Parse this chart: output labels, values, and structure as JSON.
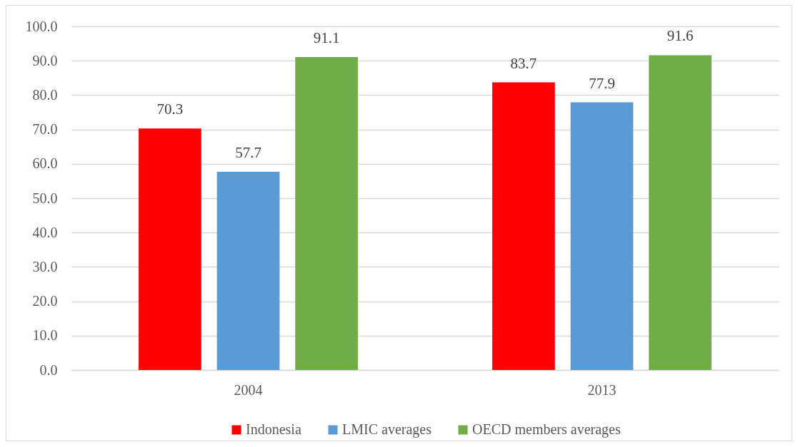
{
  "chart_data": {
    "type": "bar",
    "categories": [
      "2004",
      "2013"
    ],
    "series": [
      {
        "name": "Indonesia",
        "color": "#ff0000",
        "values": [
          70.3,
          83.7
        ]
      },
      {
        "name": "LMIC averages",
        "color": "#5b9bd5",
        "values": [
          57.7,
          77.9
        ]
      },
      {
        "name": "OECD members averages",
        "color": "#70ad47",
        "values": [
          91.1,
          91.6
        ]
      }
    ],
    "ylim": [
      0,
      100
    ],
    "yticks": [
      {
        "value": 0,
        "label": "0.0"
      },
      {
        "value": 10,
        "label": "10.0"
      },
      {
        "value": 20,
        "label": "20.0"
      },
      {
        "value": 30,
        "label": "30.0"
      },
      {
        "value": 40,
        "label": "40.0"
      },
      {
        "value": 50,
        "label": "50.0"
      },
      {
        "value": 60,
        "label": "60.0"
      },
      {
        "value": 70,
        "label": "70.0"
      },
      {
        "value": 80,
        "label": "80.0"
      },
      {
        "value": 90,
        "label": "90.0"
      },
      {
        "value": 100,
        "label": "100.0"
      }
    ],
    "grid": "y",
    "legend": "bottom",
    "data_labels": true
  }
}
